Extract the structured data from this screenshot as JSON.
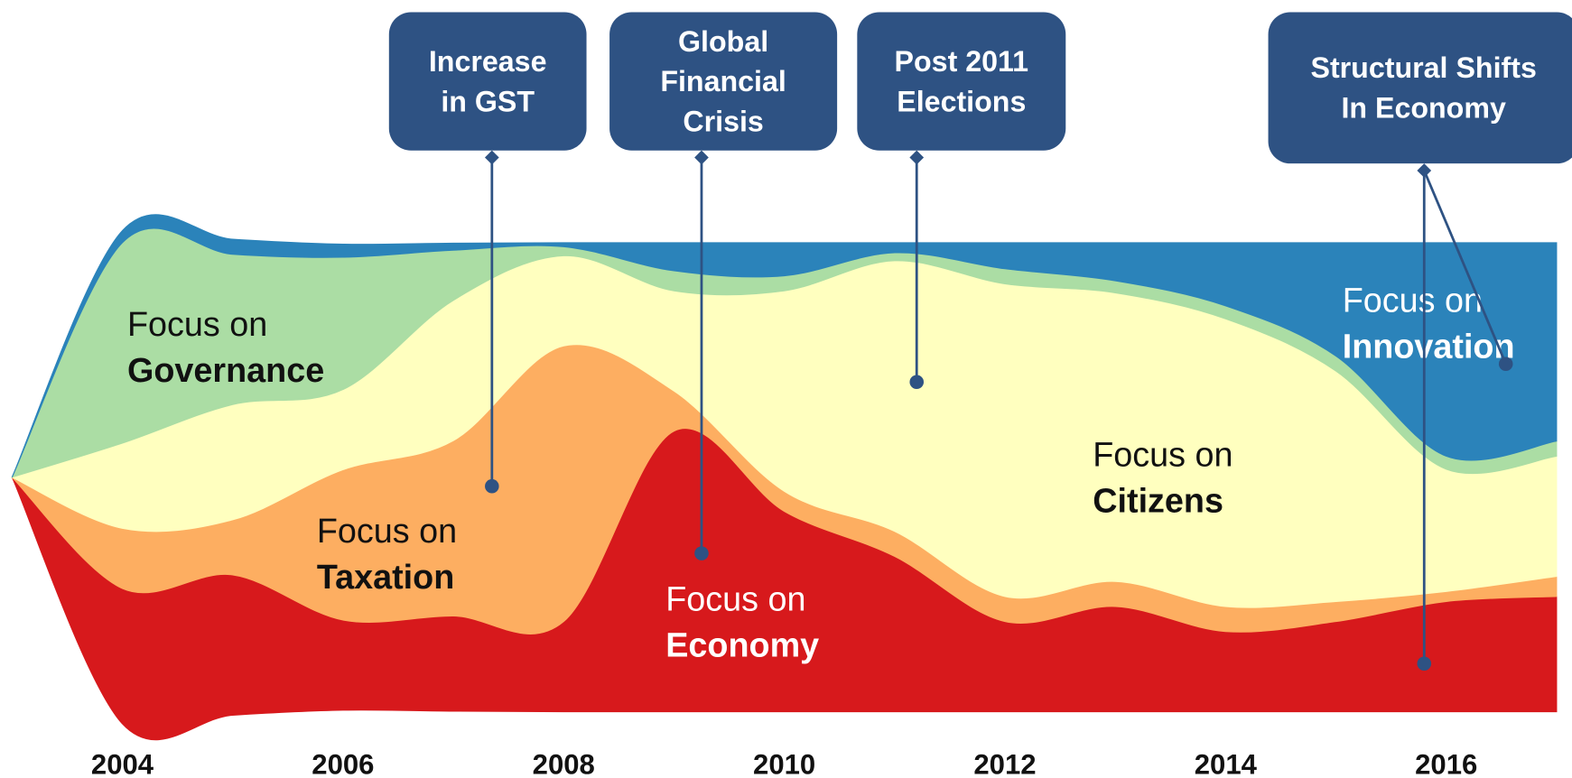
{
  "chart_data": {
    "type": "streamgraph",
    "x": [
      2003,
      2004,
      2005,
      2006,
      2007,
      2008,
      2009,
      2010,
      2011,
      2012,
      2013,
      2014,
      2015,
      2016,
      2017
    ],
    "xlim": [
      2003,
      2017.14
    ],
    "xticks": [
      2004,
      2006,
      2008,
      2010,
      2012,
      2014,
      2016
    ],
    "label_prefix": "Focus on",
    "series": [
      {
        "name": "Economy",
        "color": "#d7191c",
        "values": [
          0,
          135,
          140,
          90,
          95,
          90,
          280,
          200,
          155,
          90,
          105,
          80,
          90,
          110,
          115
        ]
      },
      {
        "name": "Taxation",
        "color": "#fdae61",
        "values": [
          0,
          60,
          55,
          150,
          175,
          275,
          40,
          20,
          25,
          25,
          25,
          25,
          20,
          10,
          20
        ]
      },
      {
        "name": "Citizens",
        "color": "#ffffbf",
        "values": [
          0,
          85,
          115,
          80,
          140,
          90,
          100,
          200,
          270,
          312,
          288,
          287,
          230,
          122,
          120
        ]
      },
      {
        "name": "Governance",
        "color": "#abdda4",
        "values": [
          0,
          200,
          150,
          132,
          50,
          9,
          20,
          15,
          8,
          15,
          12,
          13,
          15,
          13,
          15
        ]
      },
      {
        "name": "Innovation",
        "color": "#2b83ba",
        "values": [
          0,
          12,
          15,
          13,
          7,
          4,
          28,
          33,
          10,
          26,
          38,
          63,
          113,
          213,
          198
        ]
      }
    ],
    "annotations": [
      {
        "lines": [
          "Increase",
          "in GST"
        ],
        "x": 2007.35
      },
      {
        "lines": [
          "Global",
          "Financial",
          "Crisis"
        ],
        "x": 2009.25
      },
      {
        "lines": [
          "Post 2011",
          "Elections"
        ],
        "x": 2011.2
      },
      {
        "lines": [
          "Structural Shifts",
          "In Economy"
        ],
        "x": 2015.8
      }
    ]
  }
}
